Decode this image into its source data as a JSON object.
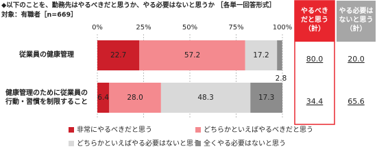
{
  "chart_data": {
    "type": "stacked-bar-horizontal",
    "title": "◆以下のことを、勤務先はやるべきだと思うか、やる必要はないと思うか ［各単一回答形式］",
    "subtitle": "対象：有職者［n=669］",
    "categories": [
      "従業員の健康管理",
      "健康管理のために従業員の\n行動・習慣を制限すること"
    ],
    "series": [
      {
        "name": "非常にやるべきだと思う",
        "color": "#cc1f2a",
        "values": [
          22.7,
          6.4
        ]
      },
      {
        "name": "どちらかといえばやるべきだと思う",
        "color": "#f48a8f",
        "values": [
          57.2,
          28
        ],
        "value_labels": [
          "57.2",
          "28.0"
        ]
      },
      {
        "name": "どちらかといえばやる必要はないと思う",
        "color": "#d9d9d9",
        "values": [
          17.2,
          48.3
        ]
      },
      {
        "name": "全くやる必要はないと思う",
        "color": "#8c8c8c",
        "values": [
          2.8,
          17.3
        ]
      }
    ],
    "xlim": [
      0,
      100
    ],
    "xticks": [
      {
        "value": 0,
        "label": "0%"
      },
      {
        "value": 25,
        "label": "25%"
      },
      {
        "value": 50,
        "label": "50%"
      },
      {
        "value": 75,
        "label": "75%"
      },
      {
        "value": 100,
        "label": "100%"
      }
    ],
    "grid": true,
    "summary": [
      {
        "header": "やるべき\nだと思う\n（計）",
        "color": "#e8262e",
        "values": [
          80,
          34.4
        ],
        "value_labels": [
          "80.0",
          "34.4"
        ]
      },
      {
        "header": "やる必要は\nないと思う\n（計）",
        "color": "#a6a6a6",
        "values": [
          20,
          65.6
        ],
        "value_labels": [
          "20.0",
          "65.6"
        ]
      }
    ]
  }
}
